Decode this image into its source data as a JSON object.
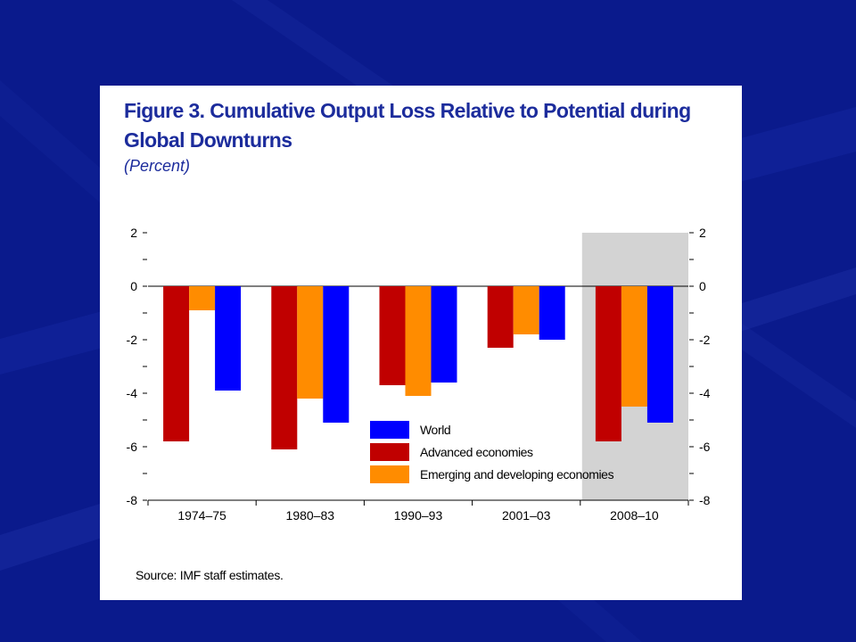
{
  "slide": {
    "background_color": "#0a1a8c"
  },
  "figure": {
    "title": "Figure 3.  Cumulative Output Loss Relative to Potential during Global Downturns",
    "subtitle": "(Percent)",
    "source": "Source: IMF staff estimates."
  },
  "chart_data": {
    "type": "bar",
    "title": "Figure 3.  Cumulative Output Loss Relative to Potential during Global Downturns",
    "subtitle": "(Percent)",
    "xlabel": "",
    "ylabel": "",
    "ylim": [
      -8,
      2
    ],
    "y_ticks": [
      2,
      0,
      -2,
      -4,
      -6,
      -8
    ],
    "y_axis_sides": [
      "left",
      "right"
    ],
    "grid": false,
    "categories": [
      "1974–75",
      "1980–83",
      "1990–93",
      "2001–03",
      "2008–10"
    ],
    "highlighted_category": "2008–10",
    "highlight_color": "#d3d3d3",
    "legend_position": "bottom-right",
    "series": [
      {
        "name": "Advanced economies",
        "color": "#c00000",
        "values": [
          -5.8,
          -6.1,
          -3.7,
          -2.3,
          -5.8
        ]
      },
      {
        "name": "Emerging and developing economies",
        "color": "#ff8c00",
        "values": [
          -0.9,
          -4.2,
          -4.1,
          -1.8,
          -4.5
        ]
      },
      {
        "name": "World",
        "color": "#0000ff",
        "values": [
          -3.9,
          -5.1,
          -3.6,
          -2.0,
          -5.1
        ]
      }
    ],
    "legend_order": [
      "World",
      "Advanced economies",
      "Emerging and developing economies"
    ]
  }
}
